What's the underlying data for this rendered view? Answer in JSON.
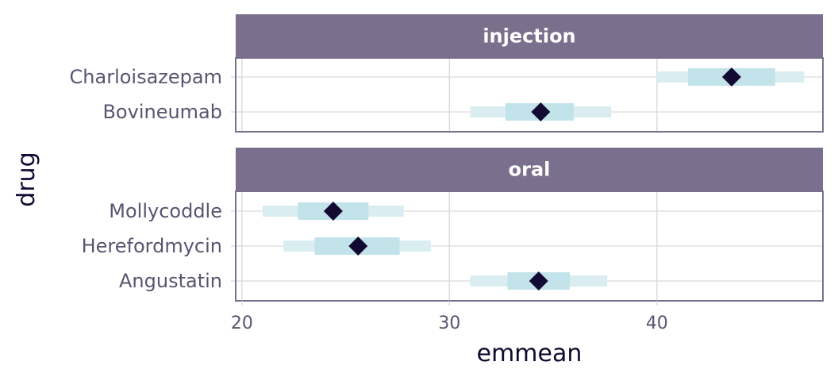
{
  "chart_data": {
    "type": "forest-interval",
    "xlabel": "emmean",
    "ylabel": "drug",
    "xlim": [
      19.7,
      48.0
    ],
    "x_ticks": [
      20,
      30,
      40
    ],
    "x_tick_labels": [
      "20",
      "30",
      "40"
    ],
    "grid": true,
    "colors": {
      "strip": "#7a708e",
      "outer_interval": "#daeef2",
      "inner_interval": "#c2e3e9",
      "point": "#120a33",
      "panel_border": "#7a708e",
      "grid": "#d9d9d9"
    },
    "panels": [
      {
        "label": "injection",
        "rows": [
          {
            "drug": "Charloisazepam",
            "emmean": 43.6,
            "inner": [
              41.5,
              45.7
            ],
            "outer": [
              40.0,
              47.1
            ]
          },
          {
            "drug": "Bovineumab",
            "emmean": 34.4,
            "inner": [
              32.7,
              36.0
            ],
            "outer": [
              31.0,
              37.8
            ]
          }
        ]
      },
      {
        "label": "oral",
        "rows": [
          {
            "drug": "Mollycoddle",
            "emmean": 24.4,
            "inner": [
              22.7,
              26.1
            ],
            "outer": [
              21.0,
              27.8
            ]
          },
          {
            "drug": "Herefordmycin",
            "emmean": 25.6,
            "inner": [
              23.5,
              27.6
            ],
            "outer": [
              22.0,
              29.1
            ]
          },
          {
            "drug": "Angustatin",
            "emmean": 34.3,
            "inner": [
              32.8,
              35.8
            ],
            "outer": [
              31.0,
              37.6
            ]
          }
        ]
      }
    ]
  }
}
